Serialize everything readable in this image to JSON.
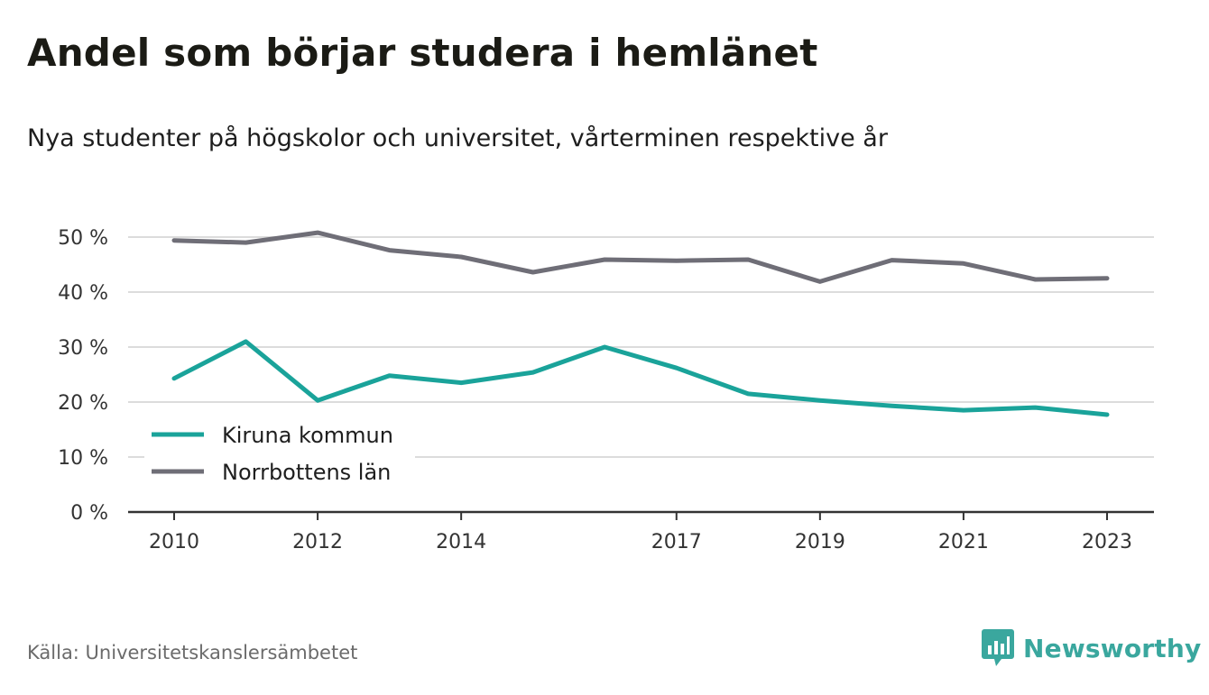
{
  "header": {
    "title": "Andel som börjar studera i hemlänet",
    "subtitle": "Nya studenter på högskolor och universitet, vårterminen respektive år"
  },
  "footer": {
    "source": "Källa: Universitetskanslersämbetet",
    "brand": "Newsworthy",
    "brand_icon": "bar-chart-speech-bubble-icon",
    "brand_color": "#3aa79e"
  },
  "chart_data": {
    "type": "line",
    "title": "Andel som börjar studera i hemlänet",
    "subtitle": "Nya studenter på högskolor och universitet, vårterminen respektive år",
    "xlabel": "",
    "ylabel": "",
    "x": [
      2010,
      2011,
      2012,
      2013,
      2014,
      2015,
      2016,
      2017,
      2018,
      2019,
      2020,
      2021,
      2022,
      2023
    ],
    "x_tick_labels": [
      "2010",
      "2012",
      "2014",
      "2017",
      "2019",
      "2021",
      "2023"
    ],
    "y_tick_labels": [
      "0 %",
      "10 %",
      "20 %",
      "30 %",
      "40 %",
      "50 %"
    ],
    "ylim": [
      0,
      50
    ],
    "grid": true,
    "legend_position": "bottom-left",
    "series": [
      {
        "name": "Kiruna kommun",
        "color": "#1aa39a",
        "values": [
          24.3,
          31.0,
          20.3,
          24.8,
          23.5,
          25.4,
          30.0,
          26.2,
          21.5,
          20.3,
          19.3,
          18.5,
          19.0,
          17.7
        ]
      },
      {
        "name": "Norrbottens län",
        "color": "#6f6e77",
        "values": [
          49.4,
          49.0,
          50.8,
          47.6,
          46.4,
          43.6,
          45.9,
          45.7,
          45.9,
          41.9,
          45.8,
          45.2,
          42.3,
          42.5
        ]
      }
    ]
  }
}
